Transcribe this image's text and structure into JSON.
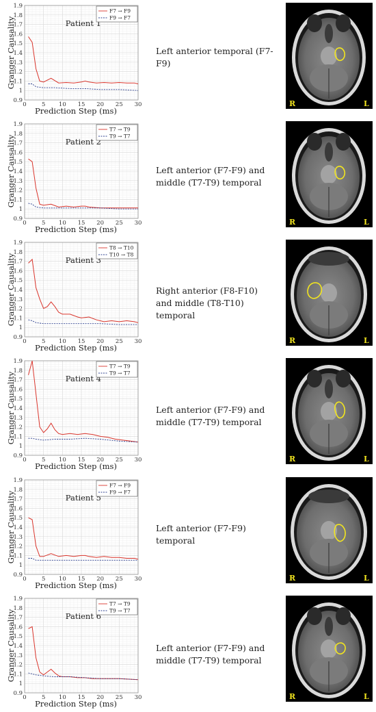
{
  "figure": {
    "rows": [
      {
        "description": "Left anterior temporal (F7-F9)",
        "mri": {
          "left_label": "R",
          "right_label": "L",
          "variant": 1
        },
        "chart_data": {
          "type": "line",
          "title": "Patient 1",
          "xlabel": "Prediction Step (ms)",
          "ylabel": "Granger Causality",
          "xlim": [
            0,
            30
          ],
          "ylim": [
            0.9,
            1.9
          ],
          "xticks": [
            "0",
            "5",
            "10",
            "15",
            "20",
            "25",
            "30"
          ],
          "yticks": [
            "0.9",
            "1",
            "1.1",
            "1.2",
            "1.3",
            "1.4",
            "1.5",
            "1.6",
            "1.7",
            "1.8",
            "1.9"
          ],
          "grid": true,
          "legend_position": "top-right",
          "series": [
            {
              "name": "F7 → F9",
              "color": "#d9342b",
              "style": "solid",
              "x": [
                1,
                2,
                3,
                4,
                5,
                7,
                9,
                11,
                13,
                15,
                16,
                17,
                19,
                21,
                23,
                25,
                27,
                29,
                30
              ],
              "y": [
                1.57,
                1.51,
                1.23,
                1.1,
                1.09,
                1.13,
                1.08,
                1.085,
                1.08,
                1.09,
                1.1,
                1.09,
                1.08,
                1.085,
                1.08,
                1.085,
                1.08,
                1.08,
                1.07
              ]
            },
            {
              "name": "F9 → F7",
              "color": "#2b3f8f",
              "style": "dashed",
              "x": [
                1,
                2,
                3,
                5,
                8,
                12,
                16,
                20,
                25,
                30
              ],
              "y": [
                1.07,
                1.07,
                1.04,
                1.03,
                1.03,
                1.02,
                1.02,
                1.01,
                1.01,
                1.0
              ]
            }
          ]
        }
      },
      {
        "description": "Left anterior (F7-F9) and middle (T7-T9) temporal",
        "mri": {
          "left_label": "R",
          "right_label": "L",
          "variant": 2
        },
        "chart_data": {
          "type": "line",
          "title": "Patient 2",
          "xlabel": "Prediction Step (ms)",
          "ylabel": "Granger Causality",
          "xlim": [
            0,
            30
          ],
          "ylim": [
            0.9,
            1.9
          ],
          "xticks": [
            "0",
            "5",
            "10",
            "15",
            "20",
            "25",
            "30"
          ],
          "yticks": [
            "0.9",
            "1",
            "1.1",
            "1.2",
            "1.3",
            "1.4",
            "1.5",
            "1.6",
            "1.7",
            "1.8",
            "1.9"
          ],
          "grid": true,
          "legend_position": "top-right",
          "series": [
            {
              "name": "T7 → T9",
              "color": "#d9342b",
              "style": "solid",
              "x": [
                1,
                2,
                3,
                4,
                5,
                7,
                9,
                11,
                13,
                15,
                16,
                17,
                20,
                25,
                30
              ],
              "y": [
                1.53,
                1.5,
                1.22,
                1.05,
                1.04,
                1.05,
                1.02,
                1.03,
                1.02,
                1.03,
                1.03,
                1.02,
                1.01,
                1.01,
                1.01
              ]
            },
            {
              "name": "T9 → T7",
              "color": "#2b3f8f",
              "style": "dashed",
              "x": [
                1,
                2,
                3,
                5,
                8,
                12,
                16,
                20,
                25,
                30
              ],
              "y": [
                1.06,
                1.05,
                1.02,
                1.01,
                1.01,
                1.01,
                1.01,
                1.01,
                1.0,
                1.0
              ]
            }
          ]
        }
      },
      {
        "description": "Right anterior (F8-F10) and middle (T8-T10) temporal",
        "mri": {
          "left_label": "R",
          "right_label": "L",
          "variant": 3
        },
        "chart_data": {
          "type": "line",
          "title": "Patient 3",
          "xlabel": "Prediction Step (ms)",
          "ylabel": "Granger Causality",
          "xlim": [
            0,
            30
          ],
          "ylim": [
            0.9,
            1.9
          ],
          "xticks": [
            "0",
            "5",
            "10",
            "15",
            "20",
            "25",
            "30"
          ],
          "yticks": [
            "0.9",
            "1",
            "1.1",
            "1.2",
            "1.3",
            "1.4",
            "1.5",
            "1.6",
            "1.7",
            "1.8",
            "1.9"
          ],
          "grid": true,
          "legend_position": "top-right",
          "series": [
            {
              "name": "T8 → T10",
              "color": "#d9342b",
              "style": "solid",
              "x": [
                1,
                2,
                3,
                4,
                5,
                6,
                7,
                8,
                9,
                10,
                12,
                14,
                15,
                17,
                19,
                21,
                23,
                25,
                27,
                29,
                30
              ],
              "y": [
                1.68,
                1.72,
                1.42,
                1.3,
                1.2,
                1.22,
                1.27,
                1.22,
                1.16,
                1.14,
                1.14,
                1.11,
                1.1,
                1.11,
                1.08,
                1.06,
                1.07,
                1.06,
                1.07,
                1.06,
                1.05
              ]
            },
            {
              "name": "T10 → T8",
              "color": "#2b3f8f",
              "style": "dashed",
              "x": [
                1,
                2,
                3,
                5,
                8,
                12,
                16,
                20,
                25,
                30
              ],
              "y": [
                1.08,
                1.07,
                1.05,
                1.04,
                1.04,
                1.04,
                1.04,
                1.04,
                1.03,
                1.03
              ]
            }
          ]
        }
      },
      {
        "description": "Left anterior (F7-F9) and middle (T7-T9) temporal",
        "mri": {
          "left_label": "R",
          "right_label": "L",
          "variant": 4
        },
        "chart_data": {
          "type": "line",
          "title": "Patient 4",
          "xlabel": "Prediction Step (ms)",
          "ylabel": "Granger Causality",
          "xlim": [
            0,
            30
          ],
          "ylim": [
            0.9,
            1.9
          ],
          "xticks": [
            "0",
            "5",
            "10",
            "15",
            "20",
            "25",
            "30"
          ],
          "yticks": [
            "0.9",
            "1",
            "1.1",
            "1.2",
            "1.3",
            "1.4",
            "1.5",
            "1.6",
            "1.7",
            "1.8",
            "1.9"
          ],
          "grid": true,
          "legend_position": "top-right",
          "series": [
            {
              "name": "T7 → T9",
              "color": "#d9342b",
              "style": "solid",
              "x": [
                1,
                2,
                3,
                4,
                5,
                6,
                7,
                8,
                9,
                10,
                12,
                14,
                16,
                18,
                20,
                22,
                24,
                26,
                28,
                30
              ],
              "y": [
                1.75,
                1.9,
                1.55,
                1.2,
                1.14,
                1.18,
                1.24,
                1.17,
                1.13,
                1.12,
                1.13,
                1.12,
                1.13,
                1.12,
                1.1,
                1.09,
                1.07,
                1.06,
                1.05,
                1.04
              ]
            },
            {
              "name": "T9 → T7",
              "color": "#2b3f8f",
              "style": "dashed",
              "x": [
                1,
                2,
                3,
                5,
                8,
                12,
                16,
                20,
                25,
                30
              ],
              "y": [
                1.08,
                1.08,
                1.07,
                1.06,
                1.07,
                1.07,
                1.08,
                1.07,
                1.05,
                1.04
              ]
            }
          ]
        }
      },
      {
        "description": "Left anterior (F7-F9) temporal",
        "mri": {
          "left_label": "R",
          "right_label": "L",
          "variant": 5
        },
        "chart_data": {
          "type": "line",
          "title": "Patient 5",
          "xlabel": "Prediction Step (ms)",
          "ylabel": "Granger Causality",
          "xlim": [
            0,
            30
          ],
          "ylim": [
            0.9,
            1.9
          ],
          "xticks": [
            "0",
            "5",
            "10",
            "15",
            "20",
            "25",
            "30"
          ],
          "yticks": [
            "0.9",
            "1",
            "1.1",
            "1.2",
            "1.3",
            "1.4",
            "1.5",
            "1.6",
            "1.7",
            "1.8",
            "1.9"
          ],
          "grid": true,
          "legend_position": "top-right",
          "series": [
            {
              "name": "F7 → F9",
              "color": "#d9342b",
              "style": "solid",
              "x": [
                1,
                2,
                3,
                4,
                5,
                7,
                9,
                11,
                13,
                15,
                16,
                17,
                19,
                21,
                23,
                25,
                27,
                29,
                30
              ],
              "y": [
                1.5,
                1.48,
                1.2,
                1.09,
                1.09,
                1.12,
                1.09,
                1.1,
                1.09,
                1.1,
                1.1,
                1.09,
                1.08,
                1.09,
                1.08,
                1.08,
                1.07,
                1.07,
                1.06
              ]
            },
            {
              "name": "F9 → F7",
              "color": "#2b3f8f",
              "style": "dashed",
              "x": [
                1,
                2,
                3,
                5,
                8,
                12,
                16,
                20,
                25,
                30
              ],
              "y": [
                1.07,
                1.07,
                1.05,
                1.05,
                1.05,
                1.05,
                1.05,
                1.05,
                1.05,
                1.05
              ]
            }
          ]
        }
      },
      {
        "description": "Left anterior (F7-F9) and middle (T7-T9) temporal",
        "mri": {
          "left_label": "R",
          "right_label": "L",
          "variant": 6
        },
        "chart_data": {
          "type": "line",
          "title": "Patient 6",
          "xlabel": "Prediction Step (ms)",
          "ylabel": "Granger Causality",
          "xlim": [
            0,
            30
          ],
          "ylim": [
            0.9,
            1.9
          ],
          "xticks": [
            "0",
            "5",
            "10",
            "15",
            "20",
            "25",
            "30"
          ],
          "yticks": [
            "0.9",
            "1",
            "1.1",
            "1.2",
            "1.3",
            "1.4",
            "1.5",
            "1.6",
            "1.7",
            "1.8",
            "1.9"
          ],
          "grid": true,
          "legend_position": "top-right",
          "series": [
            {
              "name": "T7 → T9",
              "color": "#d9342b",
              "style": "solid",
              "x": [
                1,
                2,
                3,
                4,
                5,
                6,
                7,
                8,
                9,
                10,
                12,
                14,
                16,
                18,
                20,
                25,
                30
              ],
              "y": [
                1.58,
                1.6,
                1.27,
                1.12,
                1.09,
                1.12,
                1.15,
                1.11,
                1.08,
                1.07,
                1.07,
                1.06,
                1.06,
                1.05,
                1.05,
                1.05,
                1.04
              ]
            },
            {
              "name": "T9 → T7",
              "color": "#2b3f8f",
              "style": "dashed",
              "x": [
                1,
                2,
                3,
                5,
                8,
                12,
                16,
                20,
                25,
                30
              ],
              "y": [
                1.11,
                1.1,
                1.09,
                1.08,
                1.07,
                1.07,
                1.06,
                1.05,
                1.05,
                1.04
              ]
            }
          ]
        }
      }
    ]
  }
}
